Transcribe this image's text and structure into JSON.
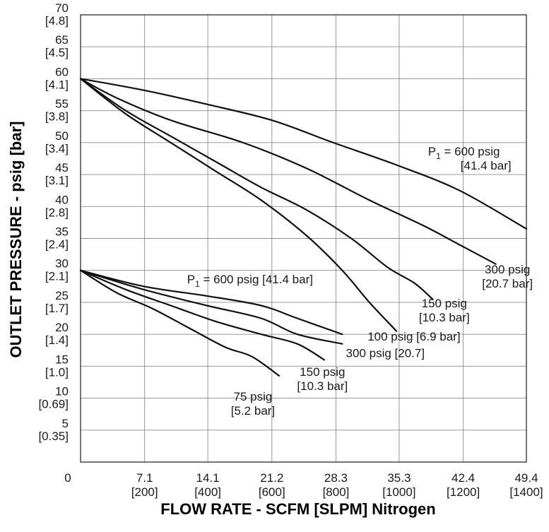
{
  "chart_data": {
    "type": "line",
    "title": "",
    "xlabel": "FLOW RATE - SCFM [SLPM] Nitrogen",
    "ylabel": "OUTLET PRESSURE - psig [bar]",
    "xlim": [
      0,
      49.4
    ],
    "ylim": [
      0,
      70
    ],
    "grid": true,
    "x_ticks": [
      {
        "value": 0,
        "top": "0",
        "bottom": ""
      },
      {
        "value": 7.1,
        "top": "7.1",
        "bottom": "[200]"
      },
      {
        "value": 14.1,
        "top": "14.1",
        "bottom": "[400]"
      },
      {
        "value": 21.2,
        "top": "21.2",
        "bottom": "[600]"
      },
      {
        "value": 28.3,
        "top": "28.3",
        "bottom": "[800]"
      },
      {
        "value": 35.3,
        "top": "35.3",
        "bottom": "[1000]"
      },
      {
        "value": 42.4,
        "top": "42.4",
        "bottom": "[1200]"
      },
      {
        "value": 49.4,
        "top": "49.4",
        "bottom": "[1400]"
      }
    ],
    "y_ticks": [
      {
        "value": 5,
        "top": "5",
        "bottom": "[0.35]"
      },
      {
        "value": 10,
        "top": "10",
        "bottom": "[0.69]"
      },
      {
        "value": 15,
        "top": "15",
        "bottom": "[1.0]"
      },
      {
        "value": 20,
        "top": "20",
        "bottom": "[1.4]"
      },
      {
        "value": 25,
        "top": "25",
        "bottom": "[1.7]"
      },
      {
        "value": 30,
        "top": "30",
        "bottom": "[2.1]"
      },
      {
        "value": 35,
        "top": "35",
        "bottom": "[2.4]"
      },
      {
        "value": 40,
        "top": "40",
        "bottom": "[2.8]"
      },
      {
        "value": 45,
        "top": "45",
        "bottom": "[3.1]"
      },
      {
        "value": 50,
        "top": "50",
        "bottom": "[3.4]"
      },
      {
        "value": 55,
        "top": "55",
        "bottom": "[3.8]"
      },
      {
        "value": 60,
        "top": "60",
        "bottom": "[4.1]"
      },
      {
        "value": 65,
        "top": "65",
        "bottom": "[4.5]"
      },
      {
        "value": 70,
        "top": "70",
        "bottom": "[4.8]"
      }
    ],
    "series": [
      {
        "group": "60 psig set",
        "label": "P1 = 600 psig [41.4 bar]",
        "x": [
          0,
          7,
          14,
          21.2,
          28,
          35,
          42,
          49.4
        ],
        "y": [
          60,
          58.2,
          56,
          53.5,
          50,
          46.5,
          42.5,
          36.5
        ]
      },
      {
        "group": "60 psig set",
        "label": "300 psig [20.7 bar]",
        "x": [
          0,
          4,
          10,
          18,
          25,
          32,
          38,
          42,
          46
        ],
        "y": [
          60,
          57,
          53.5,
          50,
          46,
          41,
          37,
          34,
          31
        ]
      },
      {
        "group": "60 psig set",
        "label": "150 psig [10.3 bar]",
        "x": [
          0,
          5,
          10,
          15,
          20,
          25,
          30,
          34,
          37,
          39
        ],
        "y": [
          60,
          55,
          51,
          47,
          43,
          39.5,
          35,
          30.5,
          28,
          25.5
        ]
      },
      {
        "group": "60 psig set",
        "label": "100 psig [6.9 bar]",
        "x": [
          0,
          5,
          10,
          15,
          20,
          25,
          29,
          32,
          35
        ],
        "y": [
          60,
          54.5,
          50,
          45.5,
          41,
          35.5,
          30,
          25,
          20.5
        ]
      },
      {
        "group": "30 psig set",
        "label": "P1 = 600 psig [41.4 bar]",
        "x": [
          0,
          7,
          14,
          20,
          24,
          29
        ],
        "y": [
          30,
          27.5,
          26,
          24.5,
          22.5,
          20
        ]
      },
      {
        "group": "30 psig set",
        "label": "300 psig [20.7]",
        "x": [
          0,
          7,
          14,
          20,
          24,
          29
        ],
        "y": [
          30,
          27,
          24.5,
          22.5,
          20,
          18.5
        ]
      },
      {
        "group": "30 psig set",
        "label": "150 psig [10.3 bar]",
        "x": [
          0,
          5,
          10,
          15,
          20,
          24,
          27
        ],
        "y": [
          30,
          27,
          24.5,
          22,
          20,
          18.5,
          16
        ]
      },
      {
        "group": "30 psig set",
        "label": "75 psig [5.2 bar]",
        "x": [
          0,
          4,
          8,
          12,
          16,
          19,
          22
        ],
        "y": [
          30,
          26.5,
          24,
          21,
          18,
          16.5,
          13.5
        ]
      }
    ],
    "annotations": [
      {
        "line1": "P",
        "sub": "1",
        "line1_rest": " = 600 psig",
        "line2": "[41.4 bar]",
        "at": [
          38.5,
          48
        ],
        "align": "start"
      },
      {
        "line1": "300 psig",
        "line2": "[20.7 bar]",
        "at": [
          47.3,
          29.5
        ],
        "align": "middle"
      },
      {
        "line1": "150 psig",
        "line2": "[10.3 bar]",
        "at": [
          40.3,
          24.2
        ],
        "align": "middle"
      },
      {
        "line1": "100 psig [6.9 bar]",
        "line2": "",
        "at": [
          31.8,
          19
        ],
        "align": "start"
      },
      {
        "line1": "P",
        "sub": "1",
        "line1_rest": " = 600 psig [41.4 bar]",
        "line2": "",
        "at": [
          11.8,
          28
        ],
        "align": "start"
      },
      {
        "line1": "300 psig [20.7]",
        "line2": "",
        "at": [
          29.4,
          16.4
        ],
        "align": "start"
      },
      {
        "line1": "150 psig",
        "line2": "[10.3 bar]",
        "at": [
          26.8,
          13.5
        ],
        "align": "middle"
      },
      {
        "line1": "75 psig",
        "line2": "[5.2 bar]",
        "at": [
          19.1,
          9.6
        ],
        "align": "middle"
      }
    ]
  }
}
